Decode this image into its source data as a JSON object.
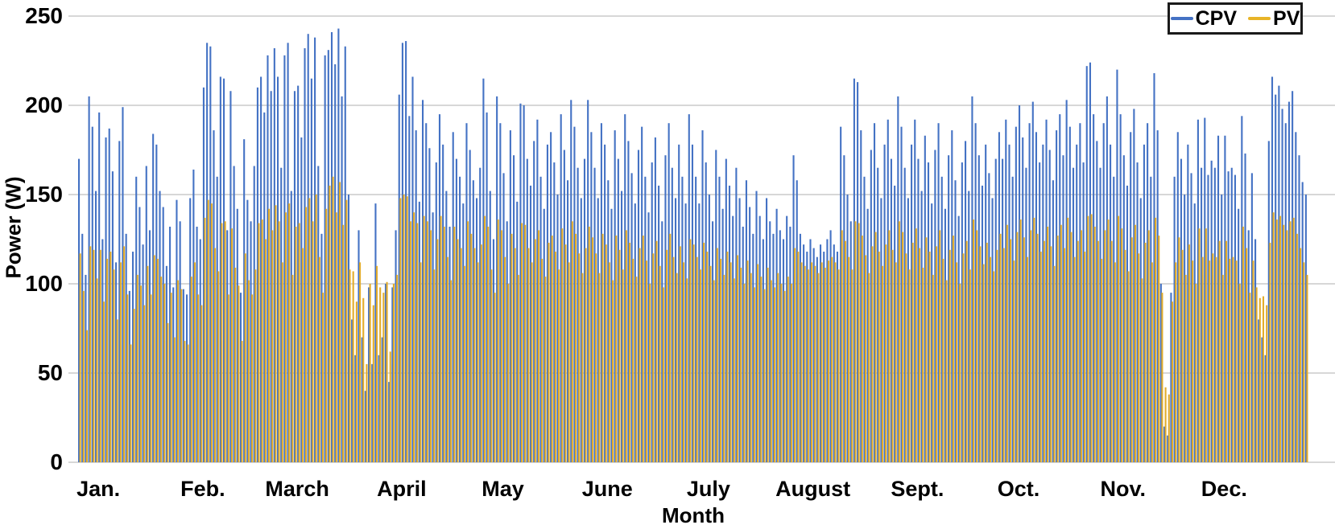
{
  "legend": {
    "items": [
      {
        "label": "CPV",
        "color": "#4472C4"
      },
      {
        "label": "PV",
        "color": "#E8B428"
      }
    ]
  },
  "colors": {
    "gridline": "#BFBFBF",
    "axis_text": "#000000",
    "background": "#FFFFFF",
    "cpv_bar": "#4472C4",
    "pv_bar": "#E2AC2B"
  },
  "chart_data": {
    "type": "bar",
    "title": "",
    "xlabel": "Month",
    "ylabel": "Power (W)",
    "ylim": [
      0,
      250
    ],
    "yticks": [
      0,
      50,
      100,
      150,
      200,
      250
    ],
    "grid": true,
    "legend_position": "top-right",
    "categories": [
      "Jan.",
      "Feb.",
      "March",
      "April",
      "May",
      "June",
      "July",
      "August",
      "Sept.",
      "Oct.",
      "Nov.",
      "Dec."
    ],
    "days_per_month": [
      31,
      28,
      31,
      30,
      31,
      30,
      31,
      31,
      30,
      31,
      30,
      31
    ],
    "x_unit": "one bar pair per day of the year (365 daily peak-power values per series, W)",
    "series": [
      {
        "name": "CPV",
        "color": "#4472C4",
        "values": [
          170,
          128,
          105,
          205,
          188,
          152,
          196,
          125,
          182,
          187,
          163,
          112,
          180,
          199,
          128,
          96,
          118,
          160,
          143,
          122,
          166,
          130,
          184,
          178,
          152,
          143,
          110,
          132,
          98,
          147,
          135,
          97,
          94,
          148,
          164,
          132,
          125,
          210,
          235,
          233,
          186,
          160,
          216,
          215,
          130,
          208,
          166,
          142,
          95,
          181,
          147,
          135,
          166,
          210,
          216,
          196,
          228,
          208,
          232,
          216,
          165,
          228,
          235,
          152,
          208,
          211,
          182,
          232,
          240,
          215,
          238,
          166,
          128,
          228,
          231,
          241,
          223,
          243,
          205,
          233,
          150,
          80,
          60,
          130,
          70,
          40,
          98,
          55,
          145,
          60,
          70,
          100,
          45,
          98,
          130,
          206,
          235,
          236,
          194,
          216,
          186,
          146,
          203,
          190,
          176,
          140,
          168,
          195,
          178,
          152,
          132,
          185,
          170,
          160,
          145,
          190,
          175,
          158,
          148,
          165,
          215,
          196,
          152,
          125,
          205,
          190,
          162,
          135,
          186,
          172,
          146,
          201,
          200,
          170,
          155,
          180,
          192,
          160,
          142,
          178,
          185,
          168,
          150,
          195,
          175,
          158,
          203,
          188,
          165,
          148,
          170,
          203,
          185,
          165,
          148,
          190,
          178,
          158,
          142,
          186,
          170,
          152,
          195,
          180,
          162,
          145,
          175,
          188,
          160,
          140,
          168,
          182,
          155,
          135,
          172,
          190,
          165,
          148,
          178,
          160,
          145,
          195,
          178,
          160,
          145,
          186,
          168,
          150,
          135,
          175,
          160,
          142,
          170,
          155,
          138,
          165,
          148,
          132,
          158,
          143,
          128,
          152,
          138,
          125,
          148,
          135,
          128,
          142,
          130,
          125,
          138,
          132,
          172,
          158,
          128,
          122,
          118,
          125,
          120,
          115,
          122,
          118,
          125,
          130,
          122,
          118,
          188,
          172,
          150,
          135,
          215,
          213,
          186,
          160,
          142,
          175,
          190,
          165,
          148,
          178,
          192,
          170,
          155,
          205,
          188,
          165,
          148,
          178,
          192,
          170,
          152,
          183,
          168,
          145,
          175,
          190,
          160,
          142,
          172,
          186,
          158,
          138,
          168,
          180,
          152,
          205,
          190,
          172,
          155,
          178,
          162,
          148,
          170,
          185,
          170,
          192,
          178,
          160,
          188,
          200,
          182,
          165,
          190,
          202,
          185,
          168,
          178,
          192,
          175,
          158,
          186,
          195,
          172,
          203,
          188,
          165,
          178,
          190,
          168,
          222,
          224,
          195,
          180,
          165,
          190,
          205,
          178,
          160,
          220,
          195,
          172,
          155,
          185,
          198,
          168,
          148,
          178,
          190,
          160,
          218,
          186,
          100,
          20,
          15,
          95,
          160,
          185,
          170,
          150,
          178,
          162,
          145,
          192,
          165,
          193,
          161,
          169,
          165,
          183,
          150,
          183,
          163,
          165,
          161,
          142,
          194,
          173,
          130,
          162,
          125,
          80,
          70,
          60,
          180,
          216,
          206,
          211,
          198,
          190,
          202,
          208,
          185,
          172,
          157,
          150
        ]
      },
      {
        "name": "PV",
        "color": "#E2AC2B",
        "values": [
          117,
          96,
          74,
          121,
          119,
          103,
          119,
          90,
          114,
          118,
          108,
          80,
          112,
          121,
          94,
          66,
          86,
          105,
          99,
          88,
          110,
          94,
          116,
          114,
          104,
          100,
          78,
          95,
          70,
          102,
          97,
          68,
          66,
          104,
          112,
          94,
          88,
          137,
          147,
          145,
          120,
          107,
          134,
          135,
          94,
          131,
          109,
          99,
          68,
          117,
          102,
          94,
          108,
          134,
          136,
          125,
          142,
          130,
          144,
          135,
          112,
          140,
          145,
          105,
          132,
          134,
          120,
          143,
          148,
          135,
          150,
          115,
          95,
          142,
          155,
          160,
          140,
          157,
          133,
          147,
          108,
          107,
          90,
          112,
          92,
          55,
          100,
          88,
          110,
          98,
          95,
          101,
          62,
          100,
          105,
          148,
          150,
          149,
          135,
          140,
          134,
          112,
          138,
          135,
          130,
          108,
          125,
          138,
          132,
          115,
          102,
          132,
          125,
          120,
          110,
          135,
          128,
          120,
          112,
          122,
          138,
          132,
          108,
          95,
          136,
          130,
          115,
          100,
          128,
          120,
          105,
          134,
          133,
          120,
          112,
          125,
          130,
          114,
          104,
          123,
          127,
          118,
          108,
          131,
          122,
          112,
          135,
          128,
          117,
          106,
          120,
          132,
          126,
          117,
          106,
          128,
          122,
          112,
          102,
          127,
          119,
          108,
          130,
          123,
          114,
          104,
          120,
          127,
          113,
          100,
          117,
          124,
          110,
          98,
          119,
          128,
          115,
          106,
          121,
          112,
          103,
          125,
          122,
          115,
          108,
          123,
          118,
          110,
          102,
          120,
          114,
          105,
          118,
          112,
          103,
          116,
          109,
          100,
          113,
          106,
          98,
          111,
          104,
          97,
          109,
          102,
          98,
          106,
          100,
          96,
          104,
          100,
          120,
          118,
          112,
          110,
          108,
          112,
          110,
          106,
          112,
          109,
          113,
          115,
          112,
          108,
          130,
          124,
          115,
          108,
          135,
          134,
          127,
          116,
          106,
          121,
          129,
          118,
          110,
          122,
          130,
          119,
          112,
          135,
          129,
          117,
          108,
          123,
          131,
          120,
          109,
          126,
          118,
          105,
          121,
          130,
          114,
          102,
          119,
          127,
          112,
          100,
          117,
          124,
          108,
          136,
          130,
          121,
          111,
          123,
          115,
          107,
          119,
          128,
          120,
          133,
          125,
          113,
          129,
          136,
          126,
          115,
          130,
          137,
          128,
          118,
          124,
          132,
          121,
          110,
          127,
          133,
          120,
          137,
          129,
          115,
          124,
          130,
          118,
          138,
          139,
          132,
          124,
          114,
          130,
          136,
          124,
          112,
          138,
          131,
          119,
          107,
          126,
          133,
          117,
          103,
          123,
          130,
          112,
          137,
          127,
          95,
          42,
          38,
          90,
          112,
          126,
          119,
          105,
          122,
          113,
          100,
          131,
          115,
          131,
          113,
          117,
          115,
          124,
          105,
          124,
          114,
          115,
          113,
          100,
          132,
          120,
          95,
          113,
          98,
          92,
          93,
          88,
          123,
          140,
          136,
          138,
          133,
          130,
          135,
          137,
          128,
          120,
          112,
          105
        ]
      }
    ]
  }
}
